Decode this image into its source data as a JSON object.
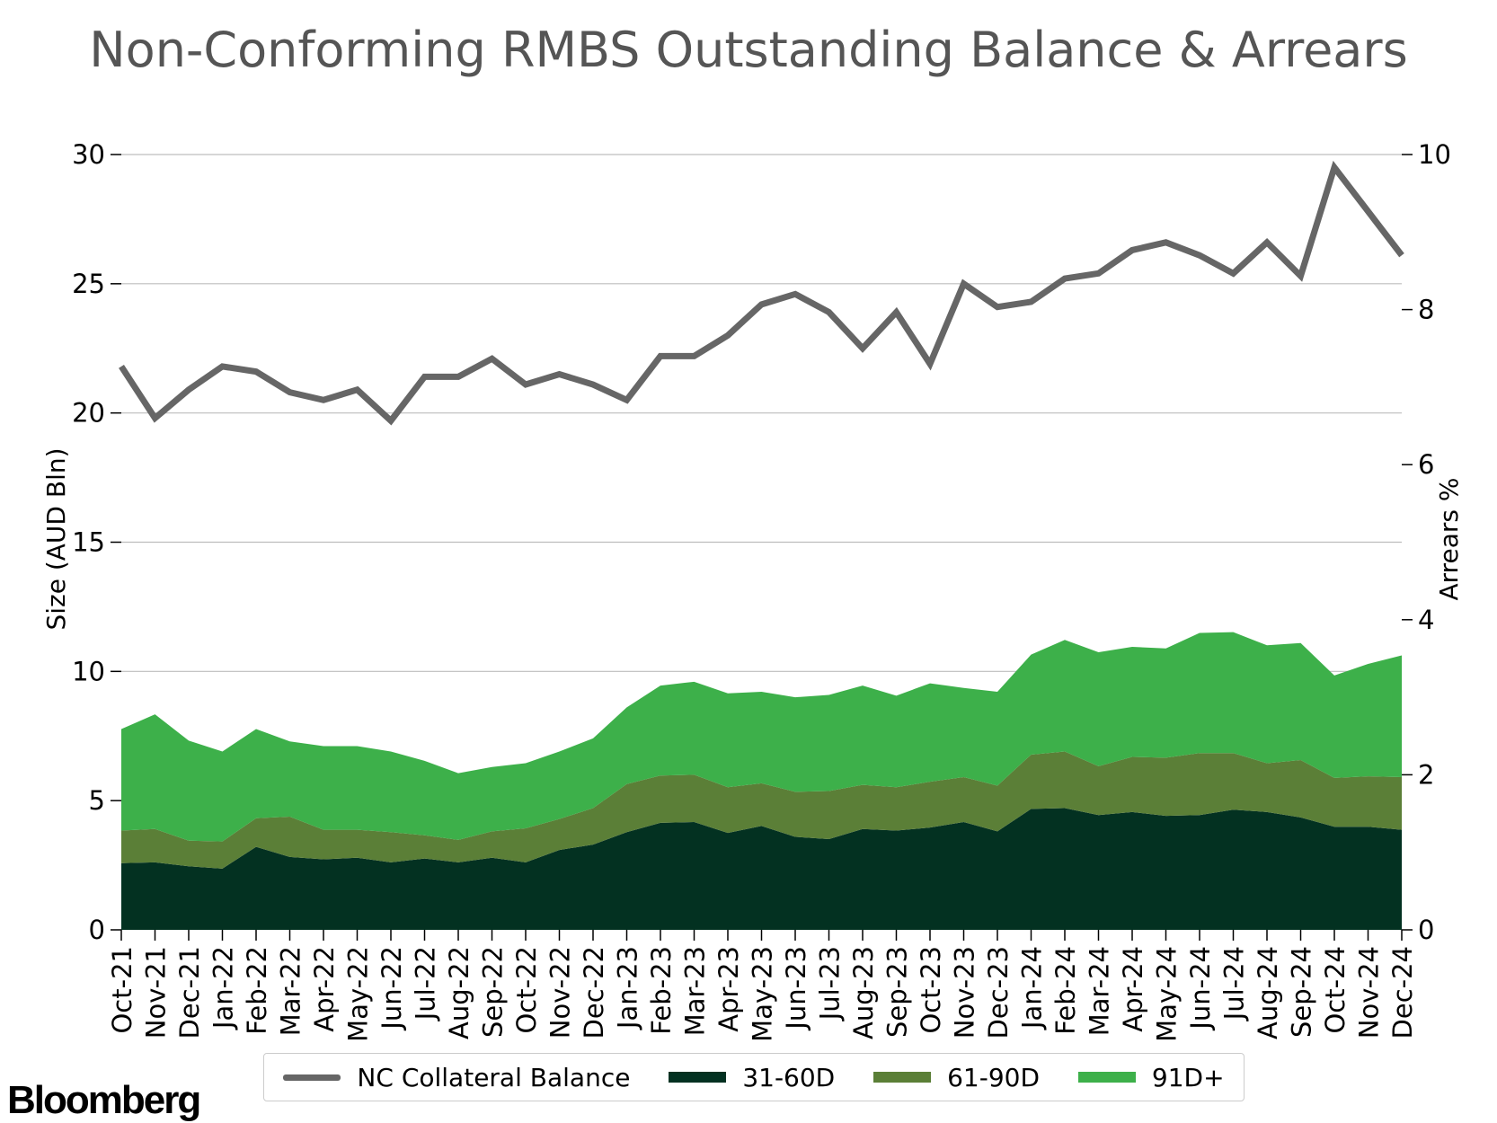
{
  "chart_data": {
    "type": "area",
    "title": "Non-Conforming RMBS Outstanding Balance & Arrears",
    "ylabel": "Size (AUD Bln)",
    "y2label": "Arrears %",
    "ylim": [
      0,
      30
    ],
    "y2lim": [
      0,
      10
    ],
    "yticks": [
      0,
      5,
      10,
      15,
      20,
      25,
      30
    ],
    "y2ticks": [
      0,
      2,
      4,
      6,
      8,
      10
    ],
    "grid": true,
    "legend_position": "bottom",
    "categories": [
      "Oct-21",
      "Nov-21",
      "Dec-21",
      "Jan-22",
      "Feb-22",
      "Mar-22",
      "Apr-22",
      "May-22",
      "Jun-22",
      "Jul-22",
      "Aug-22",
      "Sep-22",
      "Oct-22",
      "Nov-22",
      "Dec-22",
      "Jan-23",
      "Feb-23",
      "Mar-23",
      "Apr-23",
      "May-23",
      "Jun-23",
      "Jul-23",
      "Aug-23",
      "Sep-23",
      "Oct-23",
      "Nov-23",
      "Dec-23",
      "Jan-24",
      "Feb-24",
      "Mar-24",
      "Apr-24",
      "May-24",
      "Jun-24",
      "Jul-24",
      "Aug-24",
      "Sep-24",
      "Oct-24",
      "Nov-24",
      "Dec-24"
    ],
    "series": [
      {
        "name": "NC Collateral Balance",
        "type": "line",
        "axis": "left",
        "color": "#666666",
        "values": [
          21.8,
          19.8,
          20.9,
          21.8,
          21.6,
          20.8,
          20.5,
          20.9,
          19.7,
          21.4,
          21.4,
          22.1,
          21.1,
          21.5,
          21.1,
          20.5,
          22.2,
          22.2,
          23.0,
          24.2,
          24.6,
          23.9,
          22.5,
          23.9,
          21.9,
          25.0,
          24.1,
          24.3,
          25.2,
          25.4,
          26.3,
          26.6,
          26.1,
          25.4,
          26.6,
          25.3,
          29.5,
          27.8,
          26.1
        ]
      },
      {
        "name": "31-60D",
        "type": "area",
        "axis": "right",
        "color": "#033121",
        "values": [
          0.86,
          0.87,
          0.82,
          0.79,
          1.07,
          0.94,
          0.91,
          0.93,
          0.87,
          0.92,
          0.87,
          0.93,
          0.87,
          1.03,
          1.1,
          1.26,
          1.38,
          1.39,
          1.25,
          1.34,
          1.2,
          1.17,
          1.3,
          1.28,
          1.32,
          1.39,
          1.27,
          1.56,
          1.57,
          1.48,
          1.52,
          1.47,
          1.48,
          1.55,
          1.52,
          1.45,
          1.33,
          1.33,
          1.29
        ]
      },
      {
        "name": "61-90D",
        "type": "area",
        "axis": "right",
        "color": "#5b7f37",
        "values": [
          0.42,
          0.43,
          0.33,
          0.35,
          0.37,
          0.52,
          0.38,
          0.36,
          0.39,
          0.3,
          0.29,
          0.34,
          0.44,
          0.4,
          0.47,
          0.62,
          0.61,
          0.61,
          0.59,
          0.55,
          0.58,
          0.62,
          0.57,
          0.56,
          0.59,
          0.58,
          0.59,
          0.7,
          0.73,
          0.63,
          0.71,
          0.75,
          0.8,
          0.73,
          0.63,
          0.74,
          0.63,
          0.65,
          0.68
        ]
      },
      {
        "name": "91D+",
        "type": "area",
        "axis": "right",
        "color": "#3db04a",
        "values": [
          1.31,
          1.48,
          1.29,
          1.16,
          1.15,
          0.97,
          1.08,
          1.08,
          1.04,
          0.96,
          0.86,
          0.83,
          0.84,
          0.87,
          0.9,
          0.99,
          1.16,
          1.2,
          1.21,
          1.18,
          1.22,
          1.24,
          1.28,
          1.18,
          1.27,
          1.15,
          1.21,
          1.29,
          1.44,
          1.47,
          1.42,
          1.41,
          1.55,
          1.56,
          1.52,
          1.51,
          1.32,
          1.45,
          1.57
        ]
      }
    ]
  },
  "brand": {
    "logo_text": "Bloomberg"
  }
}
